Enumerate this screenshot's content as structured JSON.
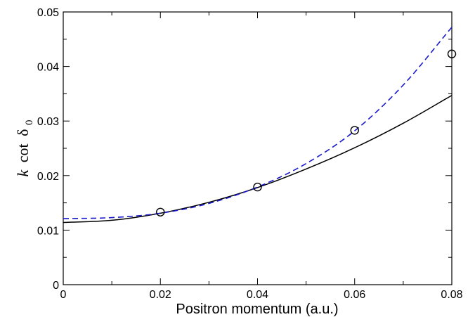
{
  "chart_data": {
    "type": "line",
    "xlabel": "Positron momentum (a.u.)",
    "ylabel": {
      "k": "k",
      "cot": "cot",
      "delta": "δ",
      "sub": "0"
    },
    "xlim": [
      0,
      0.08
    ],
    "ylim": [
      0,
      0.05
    ],
    "xticks": [
      0,
      0.02,
      0.04,
      0.06,
      0.08
    ],
    "xtick_labels": [
      "0",
      "0.02",
      "0.04",
      "0.06",
      "0.08"
    ],
    "yticks": [
      0,
      0.01,
      0.02,
      0.03,
      0.04,
      0.05
    ],
    "ytick_labels": [
      "0",
      "0.01",
      "0.02",
      "0.03",
      "0.04",
      "0.05"
    ],
    "grid": false,
    "series": [
      {
        "style": "solid",
        "color": "#000000",
        "x": [
          0,
          0.01,
          0.02,
          0.03,
          0.04,
          0.05,
          0.06,
          0.07,
          0.08
        ],
        "y": [
          0.0114,
          0.0118,
          0.0131,
          0.0151,
          0.0178,
          0.0212,
          0.0251,
          0.0296,
          0.0347
        ]
      },
      {
        "style": "dashed",
        "color": "#1a1acc",
        "x": [
          0,
          0.01,
          0.02,
          0.03,
          0.04,
          0.05,
          0.06,
          0.07,
          0.08
        ],
        "y": [
          0.0121,
          0.0123,
          0.0131,
          0.0149,
          0.0179,
          0.0222,
          0.0282,
          0.0366,
          0.0472
        ]
      },
      {
        "style": "markers",
        "marker": "open-circle",
        "color": "#000000",
        "x": [
          0.02,
          0.04,
          0.06,
          0.08
        ],
        "y": [
          0.0133,
          0.0179,
          0.0283,
          0.0423
        ]
      }
    ]
  }
}
